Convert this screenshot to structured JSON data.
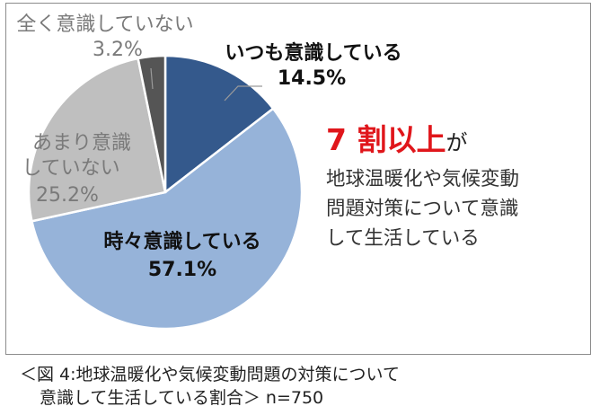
{
  "chart_data": {
    "type": "pie",
    "start_angle_deg": 0,
    "direction": "clockwise",
    "slices": [
      {
        "label": "いつも意識している",
        "value": 14.5,
        "value_label": "14.5%",
        "color": "#34598c"
      },
      {
        "label": "時々意識している",
        "value": 57.1,
        "value_label": "57.1%",
        "color": "#96b3d9"
      },
      {
        "label_lines": [
          "あまり意識",
          "していない"
        ],
        "value": 25.2,
        "value_label": "25.2%",
        "color": "#bfbfbf"
      },
      {
        "label": "全く意識していない",
        "value": 3.2,
        "value_label": "3.2%",
        "color": "#555555"
      }
    ]
  },
  "callout": {
    "highlight": "7 割以上",
    "highlight_suffix": "が",
    "lines": [
      "地球温暖化や気候変動",
      "問題対策について意識",
      "して生活している"
    ]
  },
  "caption": {
    "line1": "＜図 4:地球温暖化や気候変動問題の対策について",
    "line2": "意識して生活している割合＞ n=750"
  }
}
